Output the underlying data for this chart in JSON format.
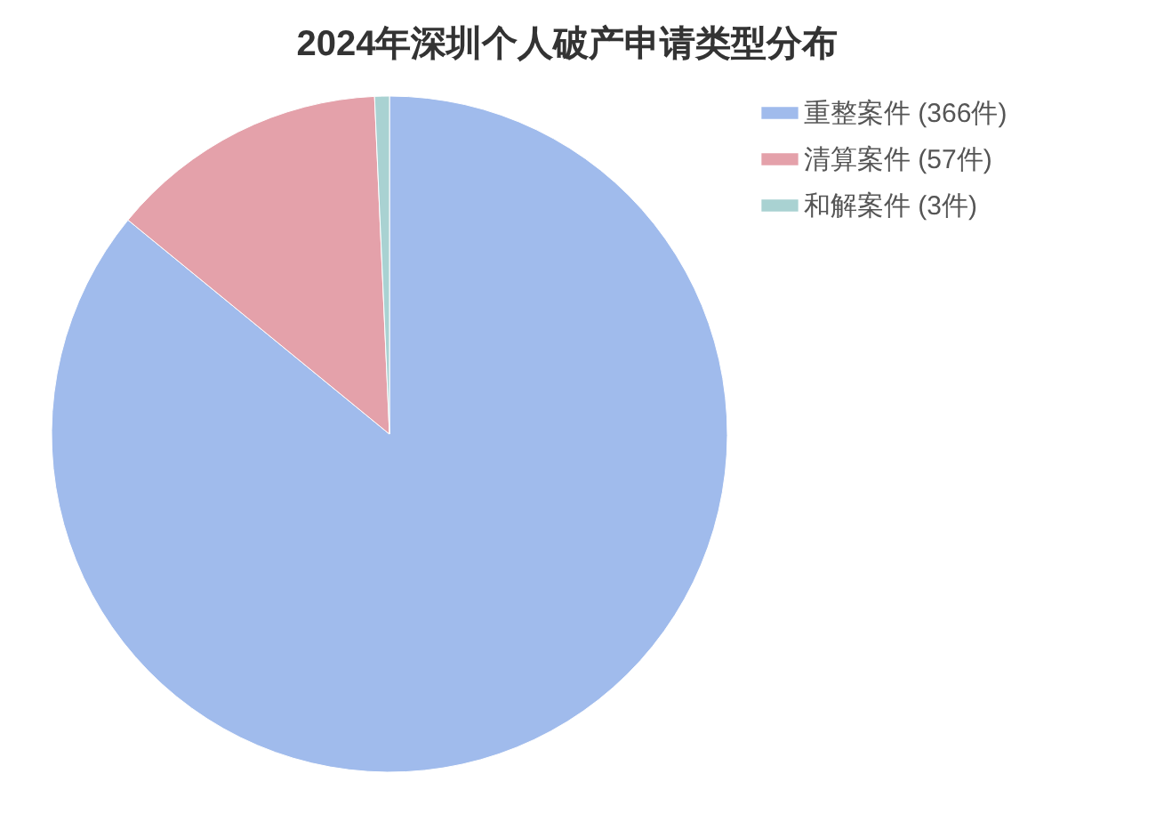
{
  "chart_data": {
    "type": "pie",
    "title": "2024年深圳个人破产申请类型分布",
    "categories": [
      "重整案件 (366件)",
      "清算案件 (57件)",
      "和解案件 (3件)"
    ],
    "values": [
      366,
      57,
      3
    ],
    "colors": [
      "#a0bbec",
      "#e4a1aa",
      "#a9d2d2"
    ],
    "legend": "right"
  }
}
